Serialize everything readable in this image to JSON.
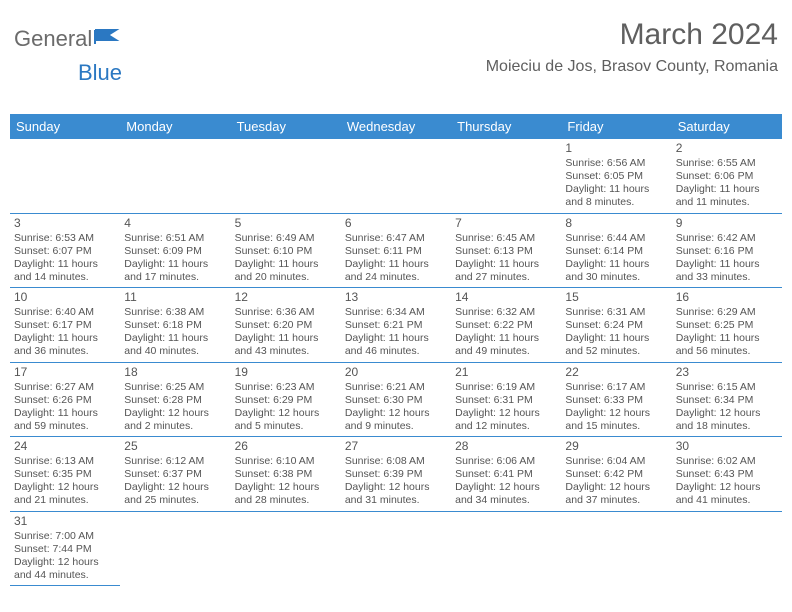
{
  "brand": {
    "part1": "General",
    "part2": "Blue"
  },
  "title": "March 2024",
  "location": "Moieciu de Jos, Brasov County, Romania",
  "colors": {
    "header_bg": "#3a8bd0",
    "header_fg": "#ffffff",
    "border": "#3a8bd0",
    "text": "#555555",
    "brand_gray": "#6b6b6b",
    "brand_blue": "#2b78c2",
    "page_bg": "#ffffff"
  },
  "weekdays": [
    "Sunday",
    "Monday",
    "Tuesday",
    "Wednesday",
    "Thursday",
    "Friday",
    "Saturday"
  ],
  "weeks": [
    [
      null,
      null,
      null,
      null,
      null,
      {
        "d": "1",
        "sr": "Sunrise: 6:56 AM",
        "ss": "Sunset: 6:05 PM",
        "dl1": "Daylight: 11 hours",
        "dl2": "and 8 minutes."
      },
      {
        "d": "2",
        "sr": "Sunrise: 6:55 AM",
        "ss": "Sunset: 6:06 PM",
        "dl1": "Daylight: 11 hours",
        "dl2": "and 11 minutes."
      }
    ],
    [
      {
        "d": "3",
        "sr": "Sunrise: 6:53 AM",
        "ss": "Sunset: 6:07 PM",
        "dl1": "Daylight: 11 hours",
        "dl2": "and 14 minutes."
      },
      {
        "d": "4",
        "sr": "Sunrise: 6:51 AM",
        "ss": "Sunset: 6:09 PM",
        "dl1": "Daylight: 11 hours",
        "dl2": "and 17 minutes."
      },
      {
        "d": "5",
        "sr": "Sunrise: 6:49 AM",
        "ss": "Sunset: 6:10 PM",
        "dl1": "Daylight: 11 hours",
        "dl2": "and 20 minutes."
      },
      {
        "d": "6",
        "sr": "Sunrise: 6:47 AM",
        "ss": "Sunset: 6:11 PM",
        "dl1": "Daylight: 11 hours",
        "dl2": "and 24 minutes."
      },
      {
        "d": "7",
        "sr": "Sunrise: 6:45 AM",
        "ss": "Sunset: 6:13 PM",
        "dl1": "Daylight: 11 hours",
        "dl2": "and 27 minutes."
      },
      {
        "d": "8",
        "sr": "Sunrise: 6:44 AM",
        "ss": "Sunset: 6:14 PM",
        "dl1": "Daylight: 11 hours",
        "dl2": "and 30 minutes."
      },
      {
        "d": "9",
        "sr": "Sunrise: 6:42 AM",
        "ss": "Sunset: 6:16 PM",
        "dl1": "Daylight: 11 hours",
        "dl2": "and 33 minutes."
      }
    ],
    [
      {
        "d": "10",
        "sr": "Sunrise: 6:40 AM",
        "ss": "Sunset: 6:17 PM",
        "dl1": "Daylight: 11 hours",
        "dl2": "and 36 minutes."
      },
      {
        "d": "11",
        "sr": "Sunrise: 6:38 AM",
        "ss": "Sunset: 6:18 PM",
        "dl1": "Daylight: 11 hours",
        "dl2": "and 40 minutes."
      },
      {
        "d": "12",
        "sr": "Sunrise: 6:36 AM",
        "ss": "Sunset: 6:20 PM",
        "dl1": "Daylight: 11 hours",
        "dl2": "and 43 minutes."
      },
      {
        "d": "13",
        "sr": "Sunrise: 6:34 AM",
        "ss": "Sunset: 6:21 PM",
        "dl1": "Daylight: 11 hours",
        "dl2": "and 46 minutes."
      },
      {
        "d": "14",
        "sr": "Sunrise: 6:32 AM",
        "ss": "Sunset: 6:22 PM",
        "dl1": "Daylight: 11 hours",
        "dl2": "and 49 minutes."
      },
      {
        "d": "15",
        "sr": "Sunrise: 6:31 AM",
        "ss": "Sunset: 6:24 PM",
        "dl1": "Daylight: 11 hours",
        "dl2": "and 52 minutes."
      },
      {
        "d": "16",
        "sr": "Sunrise: 6:29 AM",
        "ss": "Sunset: 6:25 PM",
        "dl1": "Daylight: 11 hours",
        "dl2": "and 56 minutes."
      }
    ],
    [
      {
        "d": "17",
        "sr": "Sunrise: 6:27 AM",
        "ss": "Sunset: 6:26 PM",
        "dl1": "Daylight: 11 hours",
        "dl2": "and 59 minutes."
      },
      {
        "d": "18",
        "sr": "Sunrise: 6:25 AM",
        "ss": "Sunset: 6:28 PM",
        "dl1": "Daylight: 12 hours",
        "dl2": "and 2 minutes."
      },
      {
        "d": "19",
        "sr": "Sunrise: 6:23 AM",
        "ss": "Sunset: 6:29 PM",
        "dl1": "Daylight: 12 hours",
        "dl2": "and 5 minutes."
      },
      {
        "d": "20",
        "sr": "Sunrise: 6:21 AM",
        "ss": "Sunset: 6:30 PM",
        "dl1": "Daylight: 12 hours",
        "dl2": "and 9 minutes."
      },
      {
        "d": "21",
        "sr": "Sunrise: 6:19 AM",
        "ss": "Sunset: 6:31 PM",
        "dl1": "Daylight: 12 hours",
        "dl2": "and 12 minutes."
      },
      {
        "d": "22",
        "sr": "Sunrise: 6:17 AM",
        "ss": "Sunset: 6:33 PM",
        "dl1": "Daylight: 12 hours",
        "dl2": "and 15 minutes."
      },
      {
        "d": "23",
        "sr": "Sunrise: 6:15 AM",
        "ss": "Sunset: 6:34 PM",
        "dl1": "Daylight: 12 hours",
        "dl2": "and 18 minutes."
      }
    ],
    [
      {
        "d": "24",
        "sr": "Sunrise: 6:13 AM",
        "ss": "Sunset: 6:35 PM",
        "dl1": "Daylight: 12 hours",
        "dl2": "and 21 minutes."
      },
      {
        "d": "25",
        "sr": "Sunrise: 6:12 AM",
        "ss": "Sunset: 6:37 PM",
        "dl1": "Daylight: 12 hours",
        "dl2": "and 25 minutes."
      },
      {
        "d": "26",
        "sr": "Sunrise: 6:10 AM",
        "ss": "Sunset: 6:38 PM",
        "dl1": "Daylight: 12 hours",
        "dl2": "and 28 minutes."
      },
      {
        "d": "27",
        "sr": "Sunrise: 6:08 AM",
        "ss": "Sunset: 6:39 PM",
        "dl1": "Daylight: 12 hours",
        "dl2": "and 31 minutes."
      },
      {
        "d": "28",
        "sr": "Sunrise: 6:06 AM",
        "ss": "Sunset: 6:41 PM",
        "dl1": "Daylight: 12 hours",
        "dl2": "and 34 minutes."
      },
      {
        "d": "29",
        "sr": "Sunrise: 6:04 AM",
        "ss": "Sunset: 6:42 PM",
        "dl1": "Daylight: 12 hours",
        "dl2": "and 37 minutes."
      },
      {
        "d": "30",
        "sr": "Sunrise: 6:02 AM",
        "ss": "Sunset: 6:43 PM",
        "dl1": "Daylight: 12 hours",
        "dl2": "and 41 minutes."
      }
    ],
    [
      {
        "d": "31",
        "sr": "Sunrise: 7:00 AM",
        "ss": "Sunset: 7:44 PM",
        "dl1": "Daylight: 12 hours",
        "dl2": "and 44 minutes."
      },
      null,
      null,
      null,
      null,
      null,
      null
    ]
  ]
}
